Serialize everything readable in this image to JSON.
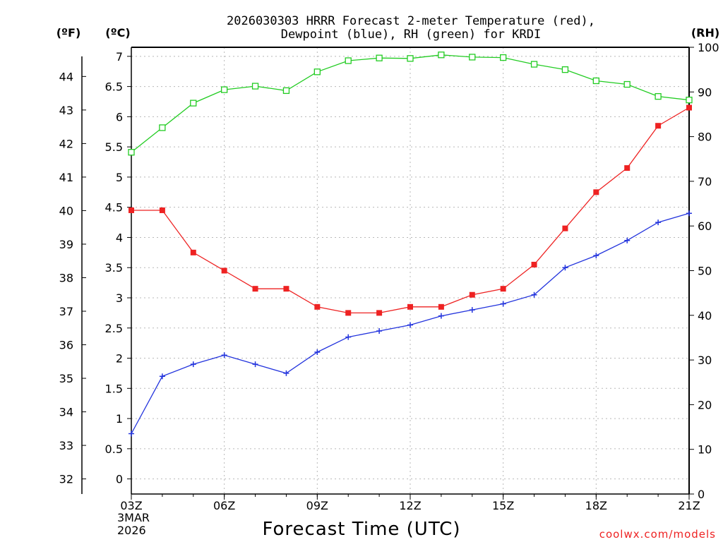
{
  "chart_data": {
    "type": "line",
    "title_line1": "2026030303 HRRR Forecast 2-meter Temperature (red),",
    "title_line2": "Dewpoint (blue), RH (green) for KRDI",
    "xlabel": "Forecast Time (UTC)",
    "credit": "coolwx.com/models",
    "unit_f": "(ºF)",
    "unit_c": "(ºC)",
    "unit_rh": "(RH)",
    "x_hours": [
      3,
      4,
      5,
      6,
      7,
      8,
      9,
      10,
      11,
      12,
      13,
      14,
      15,
      16,
      17,
      18,
      19,
      20,
      21
    ],
    "x_ticks": [
      {
        "hour": 3,
        "label": "03Z"
      },
      {
        "hour": 6,
        "label": "06Z"
      },
      {
        "hour": 9,
        "label": "09Z"
      },
      {
        "hour": 12,
        "label": "12Z"
      },
      {
        "hour": 15,
        "label": "15Z"
      },
      {
        "hour": 18,
        "label": "18Z"
      },
      {
        "hour": 21,
        "label": "21Z"
      }
    ],
    "start_date_line1": "3MAR",
    "start_date_line2": "2026",
    "xlim": [
      3,
      21
    ],
    "c_ylim": [
      -0.25,
      7.15
    ],
    "rh_ylim": [
      0,
      100
    ],
    "f_ylim": [
      31.55,
      44.87
    ],
    "c_ticks": [
      "0",
      "0.5",
      "1",
      "1.5",
      "2",
      "2.5",
      "3",
      "3.5",
      "4",
      "4.5",
      "5",
      "5.5",
      "6",
      "6.5",
      "7"
    ],
    "f_ticks": [
      "32",
      "33",
      "34",
      "35",
      "36",
      "37",
      "38",
      "39",
      "40",
      "41",
      "42",
      "43",
      "44"
    ],
    "rh_ticks": [
      "0",
      "10",
      "20",
      "30",
      "40",
      "50",
      "60",
      "70",
      "80",
      "90",
      "100"
    ],
    "series": [
      {
        "name": "Temperature",
        "units": "C",
        "color": "#ee2222",
        "marker": "filled-square",
        "values": [
          4.45,
          4.45,
          3.75,
          3.45,
          3.15,
          3.15,
          2.85,
          2.75,
          2.75,
          2.85,
          2.85,
          3.05,
          3.15,
          3.55,
          4.15,
          4.75,
          5.15,
          5.85,
          6.15
        ]
      },
      {
        "name": "Dewpoint",
        "units": "C",
        "color": "#2233dd",
        "marker": "plus",
        "values": [
          0.75,
          1.7,
          1.9,
          2.05,
          1.9,
          1.75,
          2.1,
          2.35,
          2.45,
          2.55,
          2.7,
          2.8,
          2.9,
          3.05,
          3.5,
          3.7,
          3.95,
          4.25,
          4.4
        ]
      },
      {
        "name": "RH",
        "units": "%",
        "color": "#22cc22",
        "marker": "open-square",
        "values": [
          76.5,
          82,
          87.5,
          90.5,
          91.3,
          90.3,
          94.5,
          97,
          97.6,
          97.5,
          98.3,
          97.8,
          97.7,
          96.2,
          95,
          92.5,
          91.7,
          89,
          88.2
        ]
      }
    ]
  }
}
